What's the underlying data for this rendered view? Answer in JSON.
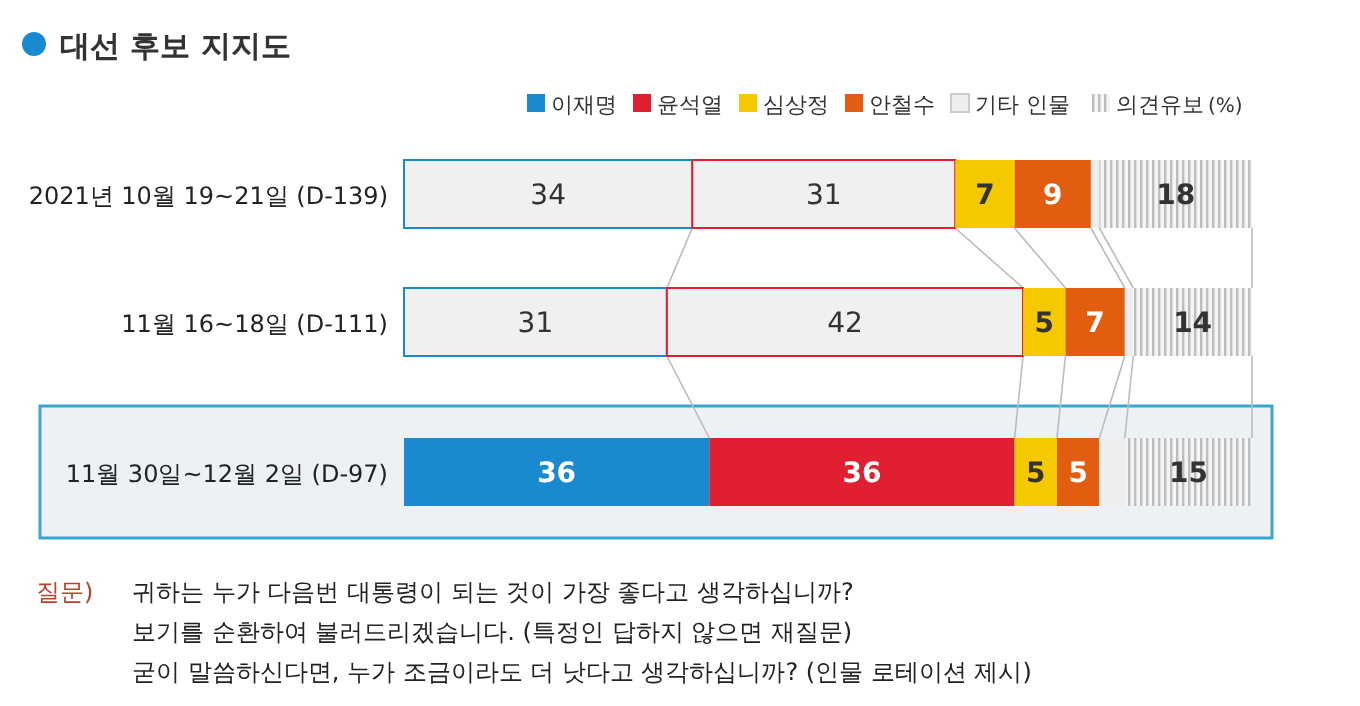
{
  "chart_data": {
    "type": "bar",
    "orientation": "horizontal",
    "stacked": true,
    "title": "대선 후보 지지도",
    "legend": "top right",
    "categories": [
      "2021년 10월 19~21일 (D-139)",
      "11월 16~18일 (D-111)",
      "11월 30일~12월 2일 (D-97)"
    ],
    "series": [
      {
        "name": "이재명",
        "color": "#1a8ad0",
        "colors": [
          "#f0f0f0",
          "#f0f0f0",
          "#1a8ad0"
        ],
        "values": [
          34,
          31,
          36
        ],
        "value_labels": [
          "34",
          "31",
          "36"
        ]
      },
      {
        "name": "윤석열",
        "color": "#e02030",
        "colors": [
          "#f0f0f0",
          "#f0f0f0",
          "#e02030"
        ],
        "values": [
          31,
          42,
          36
        ],
        "value_labels": [
          "31",
          "42",
          "36"
        ]
      },
      {
        "name": "심상정",
        "color": "#f5c800",
        "values": [
          7,
          5,
          5
        ],
        "value_labels": [
          "7",
          "5",
          "5"
        ]
      },
      {
        "name": "안철수",
        "color": "#e25d10",
        "values": [
          9,
          7,
          5
        ],
        "value_labels": [
          "9",
          "7",
          "5"
        ]
      },
      {
        "name": "기타 인물",
        "color": "#eeeeee",
        "values": [
          1,
          1,
          3
        ],
        "value_labels": [
          null,
          null,
          null
        ]
      },
      {
        "name": "의견유보",
        "color": "#c8c8c8",
        "values": [
          18,
          14,
          15
        ],
        "value_labels": [
          "18",
          "14",
          "15"
        ]
      }
    ],
    "annotations": [
      "(%)",
      "질문)",
      "귀하는 누가 다음번 대통령이 되는 것이 가장 좋다고 생각하십니까?",
      "보기를 순환하여 불러드리겠습니다. (특정인 답하지 않으면 재질문)",
      "굳이 말씀하신다면, 누가 조금이라도 더 낫다고 생각하십니까? (인물 로테이션 제시)"
    ]
  }
}
